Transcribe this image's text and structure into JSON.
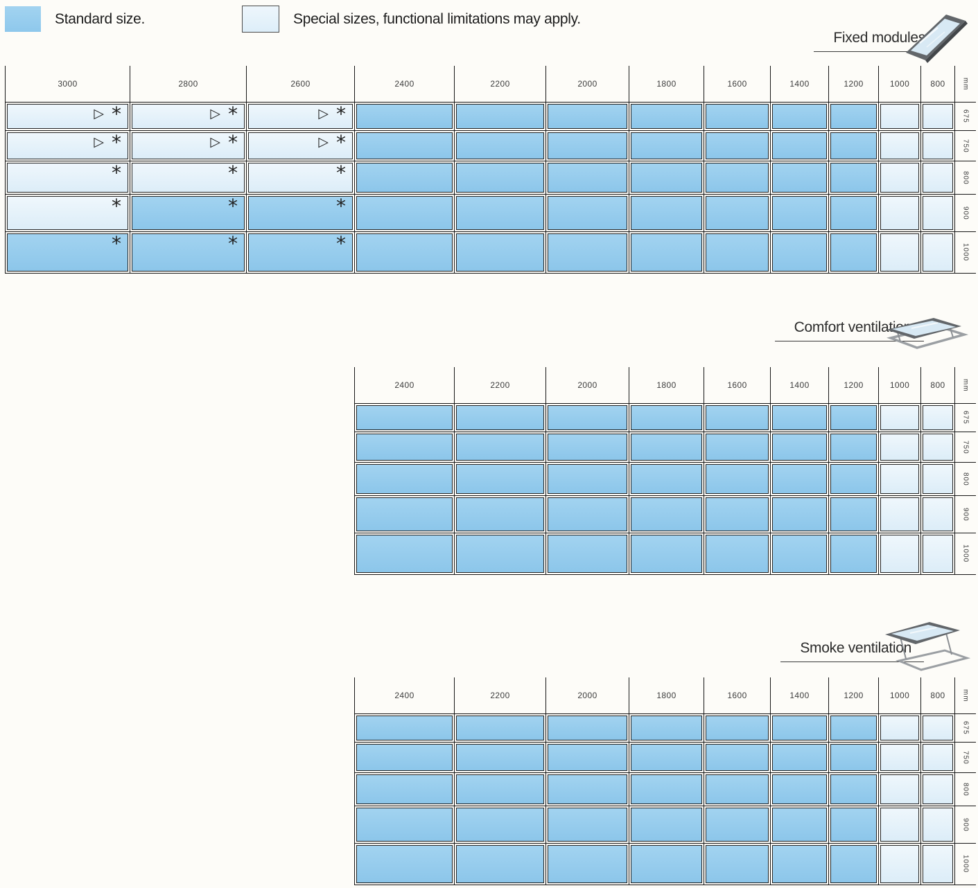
{
  "legend": {
    "standard_label": "Standard size.",
    "special_label": "Special sizes, functional limitations may apply."
  },
  "unit_label": "mm",
  "colors": {
    "standard_fill": "#92CAEC",
    "special_fill": "#E4F1FA",
    "grid": "#1A1A1A"
  },
  "cell_codes": {
    "S": "standard",
    "P": "special"
  },
  "symbol_glyphs": {
    "t": "▷",
    "a": "*"
  },
  "tables": [
    {
      "id": "fixed-modules",
      "title": "Fixed modules",
      "icon": "skylight-fixed-icon",
      "columns": [
        "3000",
        "2800",
        "2600",
        "2400",
        "2200",
        "2000",
        "1800",
        "1600",
        "1400",
        "1200",
        "1000",
        "800"
      ],
      "rows": [
        "675",
        "750",
        "800",
        "900",
        "1000"
      ],
      "cells": [
        [
          "Pta",
          "Pta",
          "Pta",
          "S",
          "S",
          "S",
          "S",
          "S",
          "S",
          "S",
          "P",
          "P"
        ],
        [
          "Pta",
          "Pta",
          "Pta",
          "S",
          "S",
          "S",
          "S",
          "S",
          "S",
          "S",
          "P",
          "P"
        ],
        [
          "Pa",
          "Pa",
          "Pa",
          "S",
          "S",
          "S",
          "S",
          "S",
          "S",
          "S",
          "P",
          "P"
        ],
        [
          "Pa",
          "Sa",
          "Sa",
          "S",
          "S",
          "S",
          "S",
          "S",
          "S",
          "S",
          "P",
          "P"
        ],
        [
          "Sa",
          "Sa",
          "Sa",
          "S",
          "S",
          "S",
          "S",
          "S",
          "S",
          "S",
          "P",
          "P"
        ]
      ]
    },
    {
      "id": "comfort-ventilation",
      "title": "Comfort ventilation",
      "icon": "skylight-comfort-icon",
      "columns": [
        "2400",
        "2200",
        "2000",
        "1800",
        "1600",
        "1400",
        "1200",
        "1000",
        "800"
      ],
      "rows": [
        "675",
        "750",
        "800",
        "900",
        "1000"
      ],
      "cells": [
        [
          "S",
          "S",
          "S",
          "S",
          "S",
          "S",
          "S",
          "P",
          "P"
        ],
        [
          "S",
          "S",
          "S",
          "S",
          "S",
          "S",
          "S",
          "P",
          "P"
        ],
        [
          "S",
          "S",
          "S",
          "S",
          "S",
          "S",
          "S",
          "P",
          "P"
        ],
        [
          "S",
          "S",
          "S",
          "S",
          "S",
          "S",
          "S",
          "P",
          "P"
        ],
        [
          "S",
          "S",
          "S",
          "S",
          "S",
          "S",
          "S",
          "P",
          "P"
        ]
      ]
    },
    {
      "id": "smoke-ventilation",
      "title": "Smoke ventilation",
      "icon": "skylight-smoke-icon",
      "columns": [
        "2400",
        "2200",
        "2000",
        "1800",
        "1600",
        "1400",
        "1200",
        "1000",
        "800"
      ],
      "rows": [
        "675",
        "750",
        "800",
        "900",
        "1000"
      ],
      "cells": [
        [
          "S",
          "S",
          "S",
          "S",
          "S",
          "S",
          "S",
          "P",
          "P"
        ],
        [
          "S",
          "S",
          "S",
          "S",
          "S",
          "S",
          "S",
          "P",
          "P"
        ],
        [
          "S",
          "S",
          "S",
          "S",
          "S",
          "S",
          "S",
          "P",
          "P"
        ],
        [
          "S",
          "S",
          "S",
          "S",
          "S",
          "S",
          "S",
          "P",
          "P"
        ],
        [
          "S",
          "S",
          "S",
          "S",
          "S",
          "S",
          "S",
          "P",
          "P"
        ]
      ]
    }
  ]
}
